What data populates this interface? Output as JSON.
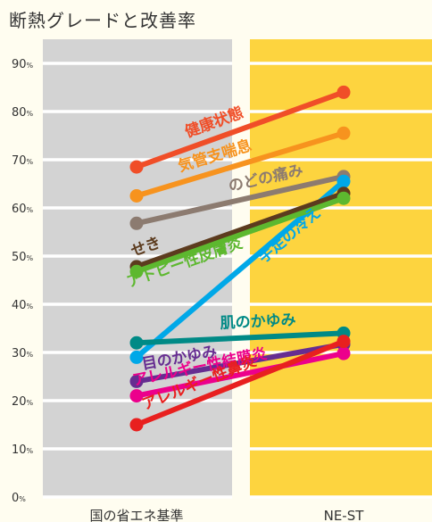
{
  "chart_data": {
    "type": "line",
    "title": "断熱グレードと改善率",
    "categories": [
      "国の省エネ基準",
      "NE-ST"
    ],
    "category_backgrounds": [
      "#d3d3d3",
      "#fdd43f"
    ],
    "ylim": [
      0,
      90
    ],
    "yticks": [
      0,
      10,
      20,
      30,
      40,
      50,
      60,
      70,
      80,
      90
    ],
    "ytick_labels": [
      "0",
      "10",
      "20",
      "30",
      "40",
      "50",
      "60",
      "70",
      "80",
      "90"
    ],
    "ytick_unit": "%",
    "grid": true,
    "series": [
      {
        "name": "健康状態",
        "values": [
          68.5,
          84.0
        ],
        "color": "#f04e28"
      },
      {
        "name": "気管支喘息",
        "values": [
          62.5,
          75.5
        ],
        "color": "#f7931e"
      },
      {
        "name": "のどの痛み",
        "values": [
          56.8,
          66.5
        ],
        "color": "#8c7b70"
      },
      {
        "name": "手足の冷え",
        "values": [
          29.0,
          65.5
        ],
        "color": "#00a8e8"
      },
      {
        "name": "せき",
        "values": [
          47.8,
          63.0
        ],
        "color": "#5c3b1e"
      },
      {
        "name": "アトピー性皮膚炎",
        "values": [
          46.8,
          62.0
        ],
        "color": "#5db82f"
      },
      {
        "name": "肌のかゆみ",
        "values": [
          32.0,
          34.0
        ],
        "color": "#008a86"
      },
      {
        "name": "目のかゆみ",
        "values": [
          24.0,
          31.7
        ],
        "color": "#662d91"
      },
      {
        "name": "アレルギー性結膜炎",
        "values": [
          21.0,
          29.8
        ],
        "color": "#ec008c"
      },
      {
        "name": "アレルギー性鼻炎",
        "values": [
          15.0,
          32.3
        ],
        "color": "#e8201f"
      }
    ]
  }
}
